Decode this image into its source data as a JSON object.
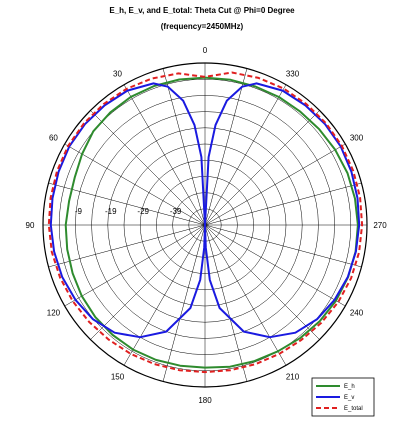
{
  "chart_data": {
    "type": "polar-line",
    "title": "E_h, E_v, and E_total: Theta Cut @ Phi=0 Degree",
    "subtitle": "(frequency=2450MHz)",
    "angle_ticks": [
      "0",
      "30",
      "60",
      "90",
      "120",
      "150",
      "180",
      "210",
      "240",
      "270",
      "300",
      "330"
    ],
    "radial_ticks": [
      "-9",
      "-19",
      "-29",
      "-39"
    ],
    "radial_values": [
      -9,
      -19,
      -29,
      -39
    ],
    "rlim": [
      -49,
      1
    ],
    "grid": true,
    "legend_position": "bottom-right",
    "colors": {
      "E_h": "#2e8b2e",
      "E_v": "#1a1ae0",
      "E_total": "#e02020"
    },
    "series": [
      {
        "name": "E_h",
        "style": "solid",
        "theta": [
          0,
          10,
          20,
          30,
          40,
          50,
          60,
          70,
          80,
          90,
          100,
          110,
          120,
          130,
          140,
          150,
          160,
          170,
          180,
          190,
          200,
          210,
          220,
          230,
          240,
          250,
          260,
          270,
          280,
          290,
          300,
          310,
          320,
          330,
          340,
          350,
          360
        ],
        "values": [
          -3.5,
          -3.4,
          -3.3,
          -3.3,
          -3.6,
          -4.0,
          -5.2,
          -6.2,
          -6.4,
          -6.0,
          -5.8,
          -5.5,
          -5.1,
          -4.8,
          -4.7,
          -4.6,
          -4.7,
          -4.9,
          -5.0,
          -4.6,
          -4.3,
          -4.0,
          -3.4,
          -2.8,
          -2.3,
          -2.0,
          -1.8,
          -1.8,
          -2.0,
          -2.2,
          -2.6,
          -3.0,
          -3.3,
          -3.4,
          -3.5,
          -3.5,
          -3.5
        ]
      },
      {
        "name": "E_v",
        "style": "solid",
        "theta": [
          0,
          3,
          6,
          10,
          15,
          20,
          30,
          40,
          50,
          60,
          70,
          80,
          90,
          100,
          110,
          120,
          130,
          140,
          150,
          160,
          170,
          175,
          178,
          180,
          182,
          185,
          190,
          200,
          210,
          220,
          230,
          240,
          250,
          260,
          270,
          280,
          290,
          300,
          310,
          320,
          330,
          340,
          345,
          350,
          354,
          357,
          360
        ],
        "values": [
          -49,
          -28,
          -18,
          -10,
          -4.8,
          -2.5,
          -1.1,
          -0.8,
          -0.6,
          -0.6,
          -0.9,
          -1.2,
          -1.4,
          -1.7,
          -2.1,
          -2.8,
          -3.8,
          -5.6,
          -9,
          -14,
          -23,
          -32,
          -42,
          -49,
          -42,
          -32,
          -23,
          -14,
          -9,
          -5.6,
          -3.8,
          -2.8,
          -2.1,
          -1.7,
          -1.4,
          -1.2,
          -0.9,
          -0.6,
          -0.6,
          -0.8,
          -1.1,
          -2.5,
          -4.8,
          -10,
          -18,
          -28,
          -49
        ]
      },
      {
        "name": "E_total",
        "style": "dashed",
        "theta": [
          0,
          10,
          20,
          30,
          40,
          50,
          60,
          70,
          80,
          90,
          100,
          110,
          120,
          130,
          140,
          150,
          160,
          170,
          180,
          190,
          200,
          210,
          220,
          230,
          240,
          250,
          260,
          270,
          280,
          290,
          300,
          310,
          320,
          330,
          340,
          350,
          360
        ],
        "values": [
          -3.3,
          -1.5,
          -0.9,
          -0.5,
          -0.3,
          -0.2,
          -0.2,
          -0.4,
          -0.6,
          -0.8,
          -1.0,
          -1.4,
          -1.9,
          -2.4,
          -2.8,
          -3.1,
          -3.3,
          -3.5,
          -3.6,
          -3.5,
          -3.3,
          -3.1,
          -2.7,
          -2.1,
          -1.5,
          -1.0,
          -0.7,
          -0.5,
          -0.4,
          -0.3,
          -0.2,
          -0.2,
          -0.3,
          -0.4,
          -0.7,
          -1.2,
          -3.3
        ]
      }
    ]
  }
}
